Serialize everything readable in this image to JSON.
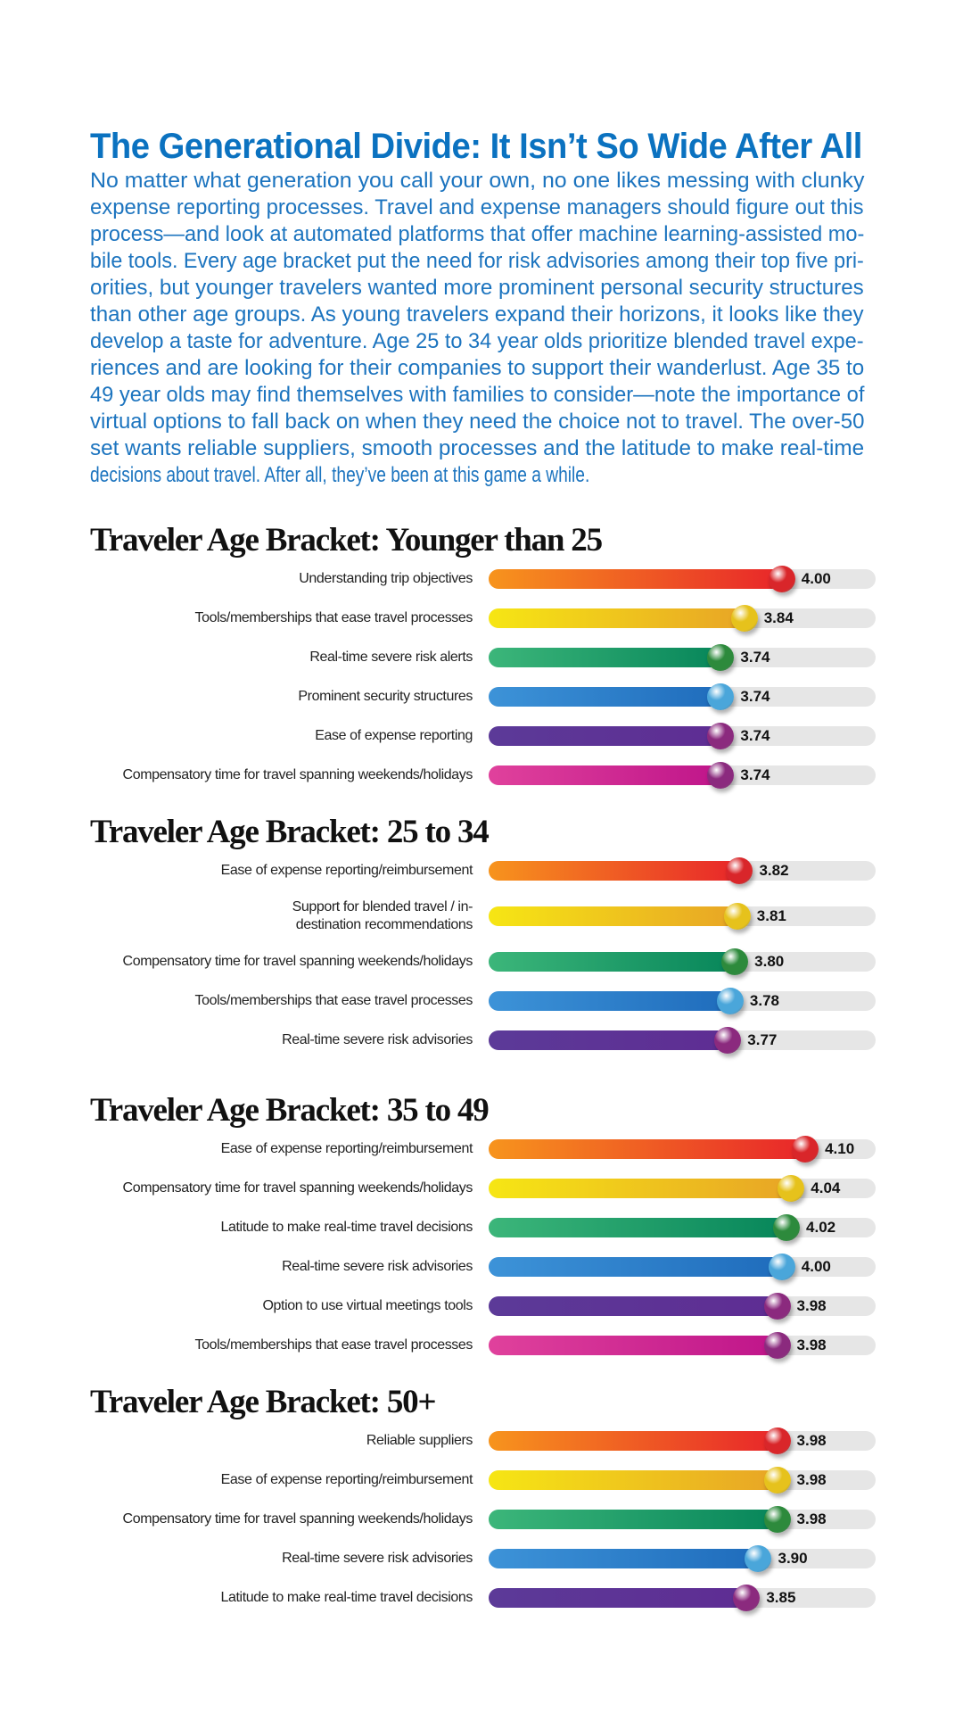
{
  "title": "The Generational Divide: It Isn’t So Wide After All",
  "intro_lines": [
    "No matter what generation you call your own, no one likes messing with clunky",
    "expense reporting processes. Travel and expense managers should figure out this",
    "process—and look at automated platforms that offer machine learning-assisted mo-",
    "bile tools. Every age bracket put the need for risk advisories among their top five pri-",
    "orities, but younger travelers wanted more prominent personal security structures",
    "than other age groups. As young travelers expand their horizons, it looks like they",
    "develop a taste for adventure. Age 25 to 34 year olds prioritize blended travel expe-",
    "riences and are looking for their companies to support their wanderlust. Age 35 to",
    "49 year olds may find themselves with families to consider—note the importance of",
    "virtual options to fall back on when they need the choice not to travel. The over-50",
    "set wants reliable suppliers, smooth processes and the latitude to make real-time",
    "decisions about travel. After all, they’ve been at this game a while."
  ],
  "colors": {
    "title": "#0b72c0",
    "palette": [
      {
        "from": "#f7941d",
        "to": "#e8262a",
        "ball": "#d9262a"
      },
      {
        "from": "#f6e614",
        "to": "#e8a526",
        "ball": "#e6c21c"
      },
      {
        "from": "#3cb67a",
        "to": "#07865a",
        "ball": "#2d8a3c"
      },
      {
        "from": "#3d93d8",
        "to": "#1f6cbc",
        "ball": "#4aa6da"
      },
      {
        "from": "#5c3a98",
        "to": "#5e2d93",
        "ball": "#8b2a7e"
      },
      {
        "from": "#e0419c",
        "to": "#bf158a",
        "ball": "#8b2a7e"
      }
    ]
  },
  "chart_data": [
    {
      "type": "bar",
      "title": "Traveler Age Bracket: Younger than 25",
      "xlim": [
        2.75,
        4.4
      ],
      "categories": [
        "Understanding trip objectives",
        "Tools/memberships that ease travel processes",
        "Real-time severe risk alerts",
        "Prominent security structures",
        "Ease of expense reporting",
        "Compensatory time for travel spanning weekends/holidays"
      ],
      "values": [
        4.0,
        3.84,
        3.74,
        3.74,
        3.74,
        3.74
      ],
      "labels": [
        "4.00",
        "3.84",
        "3.74",
        "3.74",
        "3.74",
        "3.74"
      ]
    },
    {
      "type": "bar",
      "title": "Traveler Age Bracket: 25 to 34",
      "xlim": [
        2.75,
        4.4
      ],
      "categories": [
        "Ease of expense reporting/reimbursement",
        "Support for blended travel / in-destination recommendations",
        "Compensatory time for travel spanning weekends/holidays",
        "Tools/memberships that ease travel processes",
        "Real-time severe risk advisories"
      ],
      "values": [
        3.82,
        3.81,
        3.8,
        3.78,
        3.77
      ],
      "labels": [
        "3.82",
        "3.81",
        "3.80",
        "3.78",
        "3.77"
      ]
    },
    {
      "type": "bar",
      "title": "Traveler Age Bracket: 35 to 49",
      "xlim": [
        2.75,
        4.4
      ],
      "categories": [
        "Ease of expense reporting/reimbursement",
        "Compensatory time for travel spanning weekends/holidays",
        "Latitude to make real-time travel decisions",
        "Real-time severe risk advisories",
        "Option to use virtual meetings tools",
        "Tools/memberships that ease travel processes"
      ],
      "values": [
        4.1,
        4.04,
        4.02,
        4.0,
        3.98,
        3.98
      ],
      "labels": [
        "4.10",
        "4.04",
        "4.02",
        "4.00",
        "3.98",
        "3.98"
      ]
    },
    {
      "type": "bar",
      "title": "Traveler Age Bracket: 50+",
      "xlim": [
        2.75,
        4.4
      ],
      "categories": [
        "Reliable suppliers",
        "Ease of expense reporting/reimbursement",
        "Compensatory time for travel spanning weekends/holidays",
        "Real-time severe risk advisories",
        "Latitude to make real-time travel decisions"
      ],
      "values": [
        3.98,
        3.98,
        3.98,
        3.9,
        3.85
      ],
      "labels": [
        "3.98",
        "3.98",
        "3.98",
        "3.90",
        "3.85"
      ]
    }
  ]
}
